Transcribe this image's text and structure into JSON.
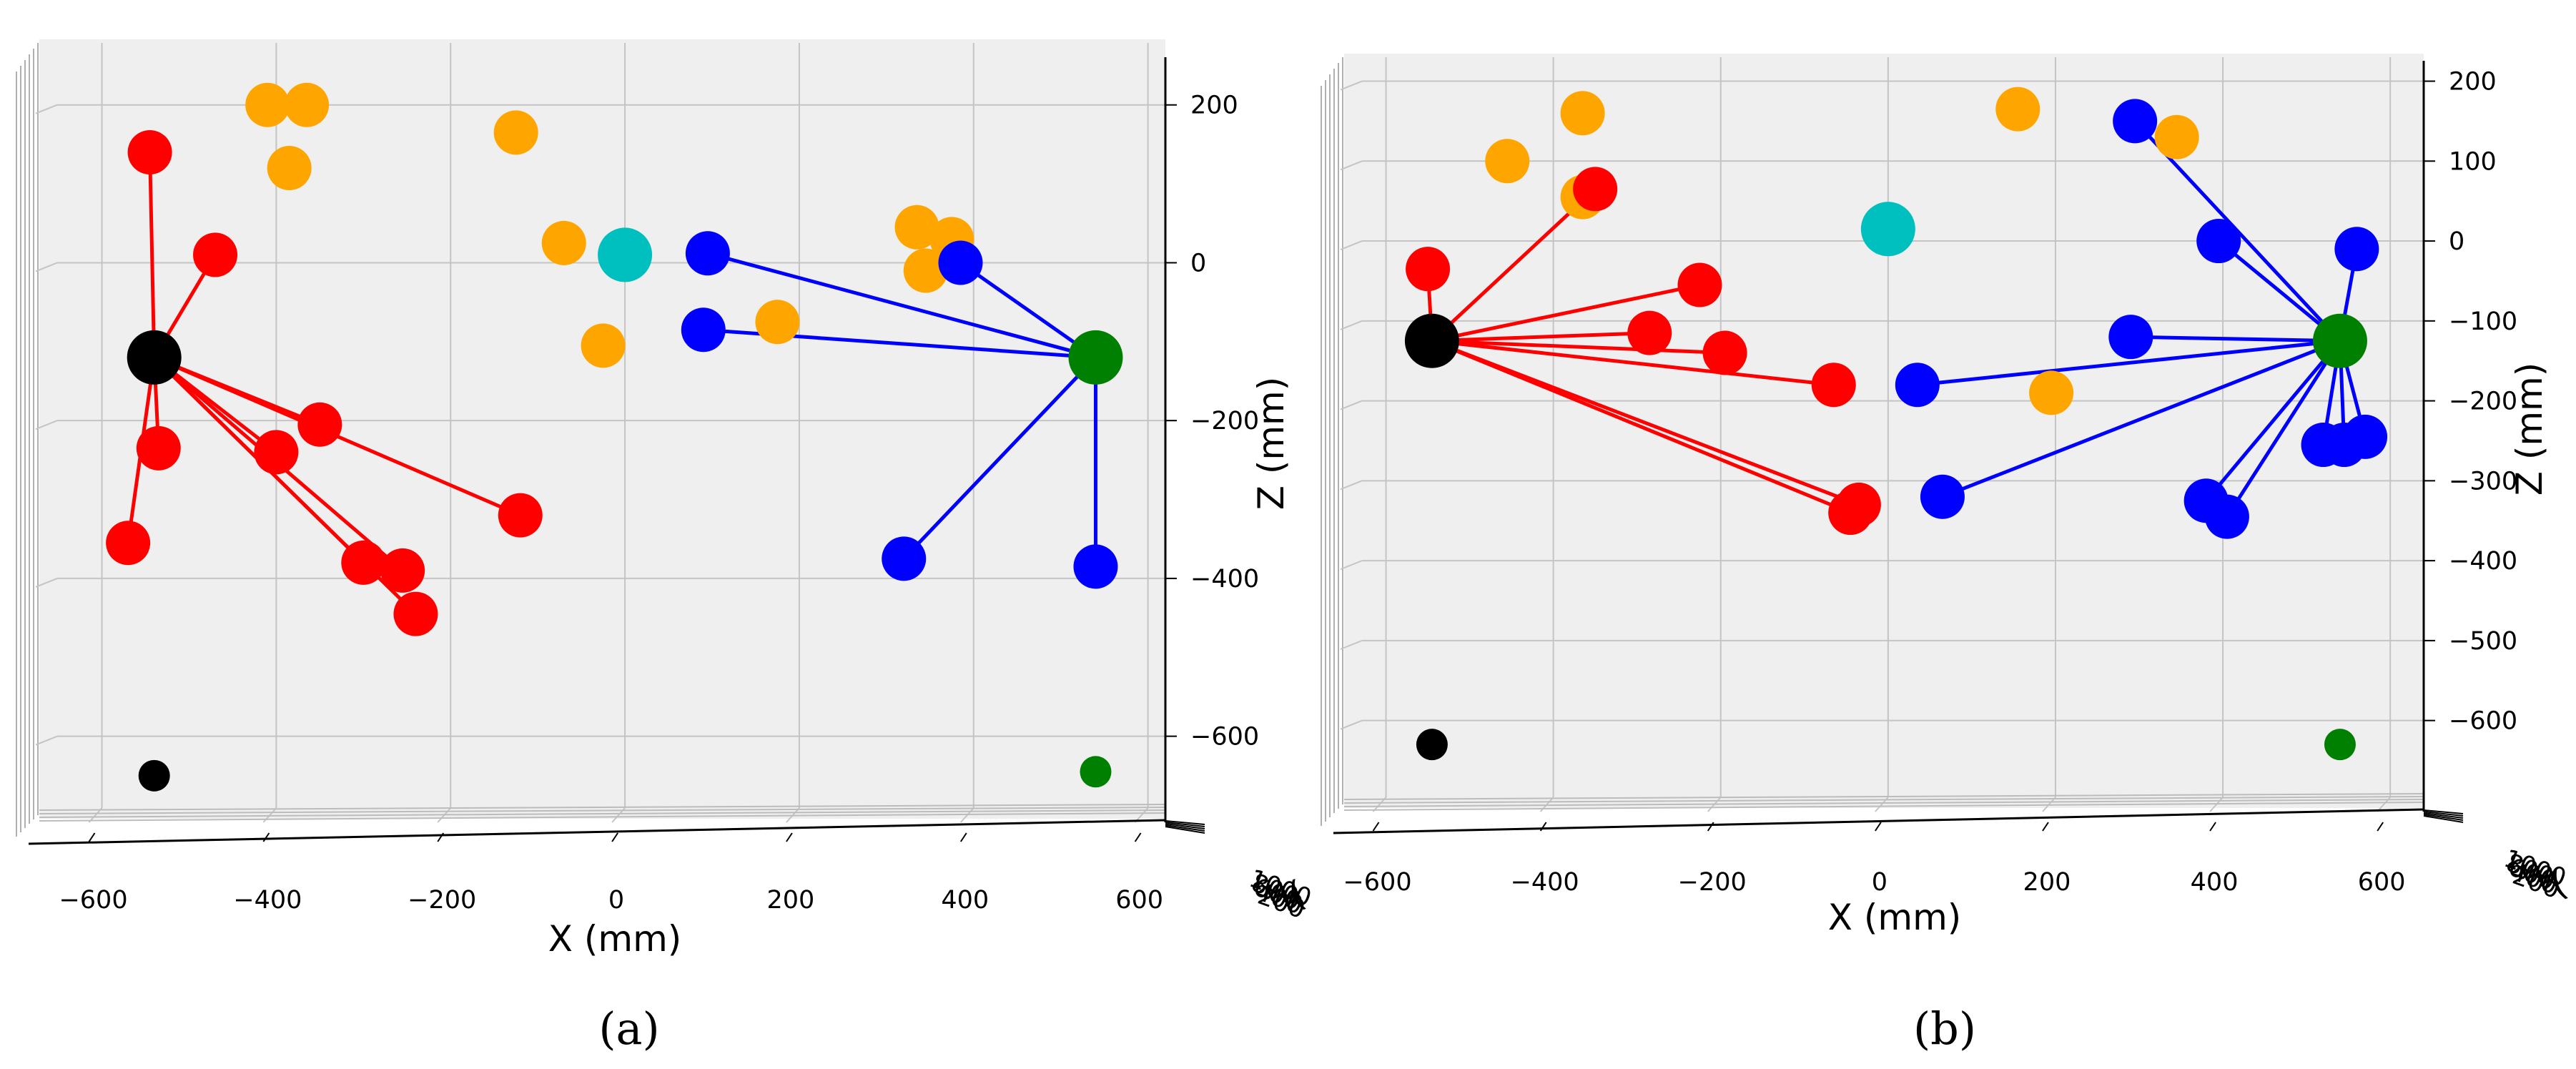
{
  "figure": {
    "colors": {
      "pane": "#efefef",
      "grid": "#c4c4c4",
      "red": "#ff0000",
      "blue": "#0000ff",
      "orange": "#ffa500",
      "cyan": "#00bfbf",
      "black": "#000000",
      "green": "#008000"
    }
  },
  "chart_data": [
    {
      "type": "scatter",
      "title": "",
      "caption": "(a)",
      "xlabel": "X (mm)",
      "zlabel": "Z (mm)",
      "ylabel_fragment": "(",
      "xlim": [
        -680,
        620
      ],
      "zlim": [
        -700,
        265
      ],
      "x_ticks": [
        -600,
        -400,
        -200,
        0,
        200,
        400,
        600
      ],
      "x_tick_labels": [
        "−600",
        "−400",
        "−200",
        "0",
        "200",
        "400",
        "600"
      ],
      "z_ticks": [
        200,
        0,
        -200,
        -400,
        -600
      ],
      "z_tick_labels": [
        "200",
        "0",
        "−200",
        "−400",
        "−600"
      ],
      "y_tick_labels": [
        "1000",
        "800",
        "600",
        "400",
        "200"
      ],
      "hubs": [
        {
          "name": "left hub",
          "color": "black",
          "x": -540,
          "z": -120
        },
        {
          "name": "right hub",
          "color": "green",
          "x": 540,
          "z": -120
        }
      ],
      "projections": [
        {
          "color": "black",
          "x": -540,
          "z": -650
        },
        {
          "color": "green",
          "x": 540,
          "z": -645
        }
      ],
      "red_points": [
        {
          "x": -545,
          "z": 140
        },
        {
          "x": -470,
          "z": 10
        },
        {
          "x": -535,
          "z": -235
        },
        {
          "x": -570,
          "z": -355
        },
        {
          "x": -350,
          "z": -205
        },
        {
          "x": -400,
          "z": -240
        },
        {
          "x": -120,
          "z": -320
        },
        {
          "x": -300,
          "z": -380
        },
        {
          "x": -255,
          "z": -390
        },
        {
          "x": -240,
          "z": -445
        }
      ],
      "blue_points": [
        {
          "x": 95,
          "z": 12
        },
        {
          "x": 385,
          "z": 0
        },
        {
          "x": 90,
          "z": -85
        },
        {
          "x": 320,
          "z": -375
        },
        {
          "x": 540,
          "z": -385
        }
      ],
      "orange_points": [
        {
          "x": -410,
          "z": 200
        },
        {
          "x": -365,
          "z": 200
        },
        {
          "x": -385,
          "z": 120
        },
        {
          "x": -125,
          "z": 165
        },
        {
          "x": -70,
          "z": 25
        },
        {
          "x": 335,
          "z": 45
        },
        {
          "x": 375,
          "z": 30
        },
        {
          "x": 345,
          "z": -10
        },
        {
          "x": 175,
          "z": -75
        },
        {
          "x": -25,
          "z": -105
        }
      ],
      "cyan_points": [
        {
          "x": 0,
          "z": 10
        }
      ]
    },
    {
      "type": "scatter",
      "title": "",
      "caption": "(b)",
      "xlabel": "X (mm)",
      "zlabel": "Z (mm)",
      "ylabel_fragment": "(",
      "xlim": [
        -650,
        640
      ],
      "zlim": [
        -705,
        230
      ],
      "x_ticks": [
        -600,
        -400,
        -200,
        0,
        200,
        400,
        600
      ],
      "x_tick_labels": [
        "−600",
        "−400",
        "−200",
        "0",
        "200",
        "400",
        "600"
      ],
      "z_ticks": [
        200,
        100,
        0,
        -100,
        -200,
        -300,
        -400,
        -500,
        -600
      ],
      "z_tick_labels": [
        "200",
        "100",
        "0",
        "−100",
        "−200",
        "−300",
        "−400",
        "−500",
        "−600"
      ],
      "y_tick_labels": [
        "1000",
        "800",
        "600",
        "400",
        "200"
      ],
      "hubs": [
        {
          "name": "left hub",
          "color": "black",
          "x": -545,
          "z": -125
        },
        {
          "name": "right hub",
          "color": "green",
          "x": 540,
          "z": -125
        }
      ],
      "projections": [
        {
          "color": "black",
          "x": -545,
          "z": -630
        },
        {
          "color": "green",
          "x": 540,
          "z": -630
        }
      ],
      "red_points": [
        {
          "x": -550,
          "z": -35
        },
        {
          "x": -350,
          "z": 65
        },
        {
          "x": -225,
          "z": -55
        },
        {
          "x": -285,
          "z": -115
        },
        {
          "x": -195,
          "z": -140
        },
        {
          "x": -65,
          "z": -180
        },
        {
          "x": -35,
          "z": -330
        },
        {
          "x": -45,
          "z": -340
        }
      ],
      "blue_points": [
        {
          "x": 295,
          "z": 150
        },
        {
          "x": 395,
          "z": 0
        },
        {
          "x": 560,
          "z": -10
        },
        {
          "x": 290,
          "z": -120
        },
        {
          "x": 35,
          "z": -180
        },
        {
          "x": 65,
          "z": -320
        },
        {
          "x": 520,
          "z": -255
        },
        {
          "x": 545,
          "z": -255
        },
        {
          "x": 570,
          "z": -245
        },
        {
          "x": 380,
          "z": -325
        },
        {
          "x": 405,
          "z": -345
        }
      ],
      "orange_points": [
        {
          "x": -365,
          "z": 160
        },
        {
          "x": -455,
          "z": 100
        },
        {
          "x": -365,
          "z": 55
        },
        {
          "x": 155,
          "z": 165
        },
        {
          "x": 345,
          "z": 130
        },
        {
          "x": 195,
          "z": -190
        }
      ],
      "cyan_points": [
        {
          "x": 0,
          "z": 15
        }
      ]
    }
  ]
}
